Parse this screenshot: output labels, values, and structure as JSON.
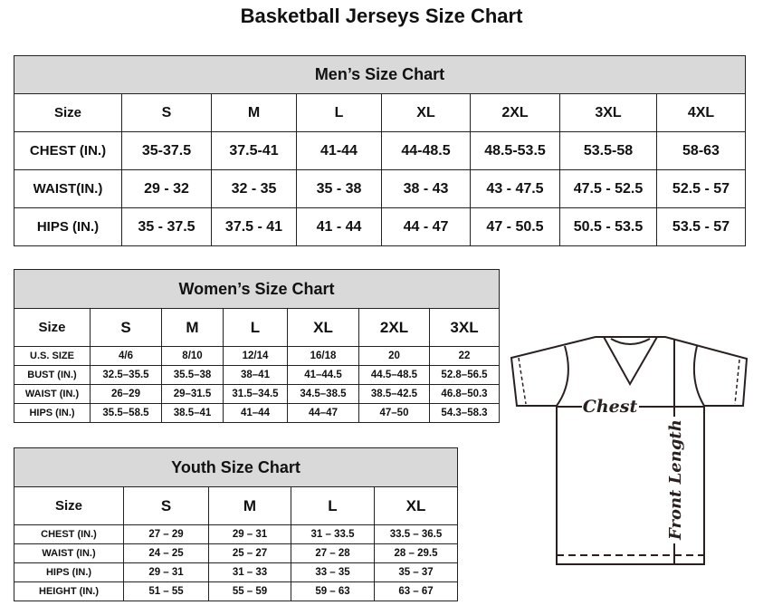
{
  "title": "Basketball Jerseys Size Chart",
  "mens": {
    "title": "Men’s Size Chart",
    "header": [
      "Size",
      "S",
      "M",
      "L",
      "XL",
      "2XL",
      "3XL",
      "4XL"
    ],
    "rows": [
      [
        "CHEST (IN.)",
        "35-37.5",
        "37.5-41",
        "41-44",
        "44-48.5",
        "48.5-53.5",
        "53.5-58",
        "58-63"
      ],
      [
        "WAIST(IN.)",
        "29 - 32",
        "32 - 35",
        "35 - 38",
        "38 - 43",
        "43 - 47.5",
        "47.5 - 52.5",
        "52.5 - 57"
      ],
      [
        "HIPS (IN.)",
        "35 - 37.5",
        "37.5 - 41",
        "41 - 44",
        "44 - 47",
        "47 - 50.5",
        "50.5 - 53.5",
        "53.5 - 57"
      ]
    ]
  },
  "womens": {
    "title": "Women’s Size Chart",
    "header": [
      "Size",
      "S",
      "M",
      "L",
      "XL",
      "2XL",
      "3XL"
    ],
    "rows": [
      [
        "U.S. SIZE",
        "4/6",
        "8/10",
        "12/14",
        "16/18",
        "20",
        "22"
      ],
      [
        "BUST (IN.)",
        "32.5–35.5",
        "35.5–38",
        "38–41",
        "41–44.5",
        "44.5–48.5",
        "52.8–56.5"
      ],
      [
        "WAIST (IN.)",
        "26–29",
        "29–31.5",
        "31.5–34.5",
        "34.5–38.5",
        "38.5–42.5",
        "46.8–50.3"
      ],
      [
        "HIPS (IN.)",
        "35.5–58.5",
        "38.5–41",
        "41–44",
        "44–47",
        "47–50",
        "54.3–58.3"
      ]
    ]
  },
  "youth": {
    "title": "Youth Size Chart",
    "header": [
      "Size",
      "S",
      "M",
      "L",
      "XL"
    ],
    "rows": [
      [
        "CHEST (IN.)",
        "27 – 29",
        "29 – 31",
        "31 – 33.5",
        "33.5 – 36.5"
      ],
      [
        "WAIST (IN.)",
        "24 – 25",
        "25 – 27",
        "27 – 28",
        "28 – 29.5"
      ],
      [
        "HIPS (IN.)",
        "29 – 31",
        "31 – 33",
        "33 – 35",
        "35 – 37"
      ],
      [
        "HEIGHT (IN.)",
        "51 – 55",
        "55 – 59",
        "59 – 63",
        "63 – 67"
      ]
    ]
  },
  "diagram": {
    "chest_label": "Chest",
    "length_label": "Front Length"
  }
}
